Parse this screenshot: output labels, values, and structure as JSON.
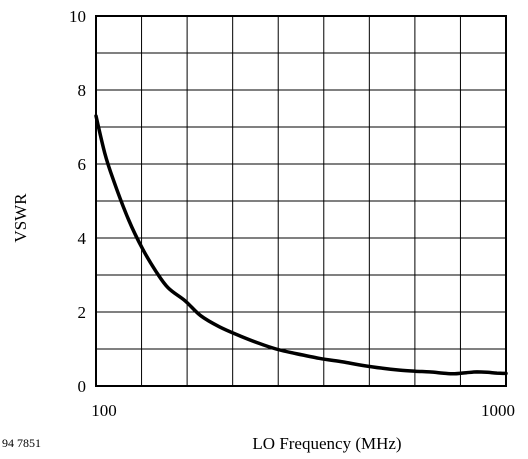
{
  "chart_data": {
    "type": "line",
    "figure_id": "94 7851",
    "xlabel": "LO Frequency (MHz)",
    "ylabel": "VSWR",
    "xlim": [
      100,
      1000
    ],
    "ylim": [
      0,
      10
    ],
    "x_ticks": [
      100,
      1000
    ],
    "y_ticks": [
      0,
      2,
      4,
      6,
      8,
      10
    ],
    "x_gridlines": 9,
    "y_gridlines": 10,
    "grid": true,
    "series": [
      {
        "x": [
          100,
          105,
          110,
          120,
          130,
          140,
          150,
          165,
          180,
          200,
          225,
          250,
          275,
          300,
          350,
          400,
          450,
          500,
          550,
          600,
          650,
          700,
          750,
          800,
          850,
          900,
          950,
          1000
        ],
        "values": [
          7.3,
          6.3,
          5.6,
          4.5,
          3.7,
          3.1,
          2.65,
          2.3,
          1.9,
          1.6,
          1.35,
          1.15,
          1.0,
          0.9,
          0.75,
          0.65,
          0.55,
          0.48,
          0.43,
          0.4,
          0.38,
          0.35,
          0.33,
          0.36,
          0.38,
          0.37,
          0.35,
          0.34
        ],
        "color": "#000000"
      }
    ]
  }
}
